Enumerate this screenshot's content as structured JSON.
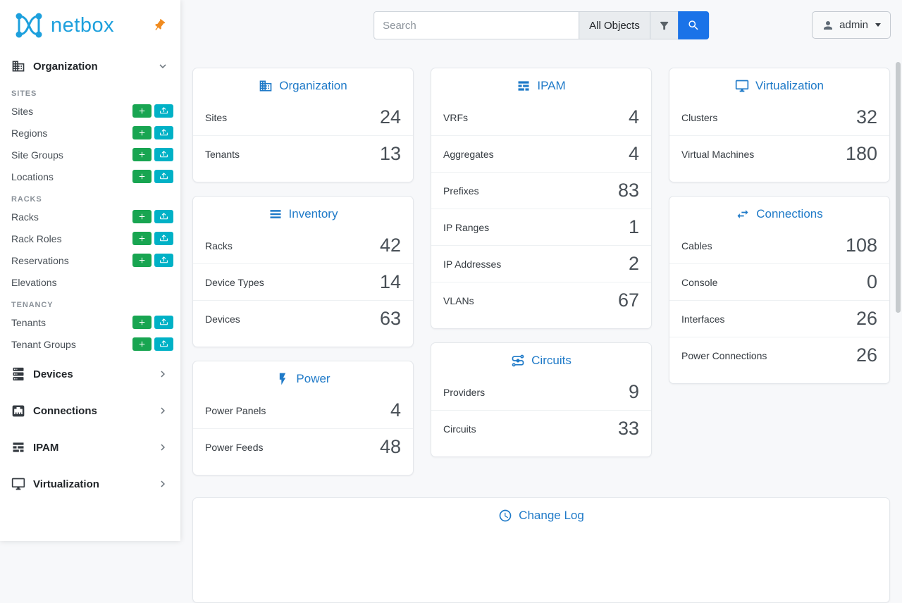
{
  "colors": {
    "accent": "#1f7ac8",
    "primary": "#1a73e8",
    "brand": "#1da0dd",
    "add-green": "#18a551",
    "import-teal": "#00b1c6",
    "pin-orange": "#f08b1f"
  },
  "icons": {
    "organization": "building-icon",
    "inventory": "list-icon",
    "power": "lightning-icon",
    "ipam": "grid-icon",
    "circuits": "transit-icon",
    "virtualization": "monitor-icon",
    "connections": "swap-icon",
    "changelog": "clock-icon",
    "devices": "server-icon",
    "search": "magnify-icon",
    "filter": "funnel-icon",
    "user": "account-icon",
    "pin": "pin-icon"
  },
  "sidebar": {
    "brand": "netbox",
    "organization": {
      "label": "Organization",
      "sections": [
        {
          "header": "SITES",
          "items": [
            {
              "label": "Sites",
              "buttons": true
            },
            {
              "label": "Regions",
              "buttons": true
            },
            {
              "label": "Site Groups",
              "buttons": true
            },
            {
              "label": "Locations",
              "buttons": true
            }
          ]
        },
        {
          "header": "RACKS",
          "items": [
            {
              "label": "Racks",
              "buttons": true
            },
            {
              "label": "Rack Roles",
              "buttons": true
            },
            {
              "label": "Reservations",
              "buttons": true
            },
            {
              "label": "Elevations",
              "buttons": false
            }
          ]
        },
        {
          "header": "TENANCY",
          "items": [
            {
              "label": "Tenants",
              "buttons": true
            },
            {
              "label": "Tenant Groups",
              "buttons": true
            }
          ]
        }
      ]
    },
    "collapsed_groups": [
      {
        "label": "Devices"
      },
      {
        "label": "Connections"
      },
      {
        "label": "IPAM"
      },
      {
        "label": "Virtualization"
      }
    ]
  },
  "topbar": {
    "search_placeholder": "Search",
    "scope_label": "All Objects",
    "user_label": "admin"
  },
  "cards": {
    "organization": {
      "title": "Organization",
      "rows": [
        {
          "label": "Sites",
          "value": "24"
        },
        {
          "label": "Tenants",
          "value": "13"
        }
      ]
    },
    "inventory": {
      "title": "Inventory",
      "rows": [
        {
          "label": "Racks",
          "value": "42"
        },
        {
          "label": "Device Types",
          "value": "14"
        },
        {
          "label": "Devices",
          "value": "63"
        }
      ]
    },
    "power": {
      "title": "Power",
      "rows": [
        {
          "label": "Power Panels",
          "value": "4"
        },
        {
          "label": "Power Feeds",
          "value": "48"
        }
      ]
    },
    "ipam": {
      "title": "IPAM",
      "rows": [
        {
          "label": "VRFs",
          "value": "4"
        },
        {
          "label": "Aggregates",
          "value": "4"
        },
        {
          "label": "Prefixes",
          "value": "83"
        },
        {
          "label": "IP Ranges",
          "value": "1"
        },
        {
          "label": "IP Addresses",
          "value": "2"
        },
        {
          "label": "VLANs",
          "value": "67"
        }
      ]
    },
    "circuits": {
      "title": "Circuits",
      "rows": [
        {
          "label": "Providers",
          "value": "9"
        },
        {
          "label": "Circuits",
          "value": "33"
        }
      ]
    },
    "virtualization": {
      "title": "Virtualization",
      "rows": [
        {
          "label": "Clusters",
          "value": "32"
        },
        {
          "label": "Virtual Machines",
          "value": "180"
        }
      ]
    },
    "connections": {
      "title": "Connections",
      "rows": [
        {
          "label": "Cables",
          "value": "108"
        },
        {
          "label": "Console",
          "value": "0"
        },
        {
          "label": "Interfaces",
          "value": "26"
        },
        {
          "label": "Power Connections",
          "value": "26"
        }
      ]
    },
    "changelog": {
      "title": "Change Log"
    }
  }
}
